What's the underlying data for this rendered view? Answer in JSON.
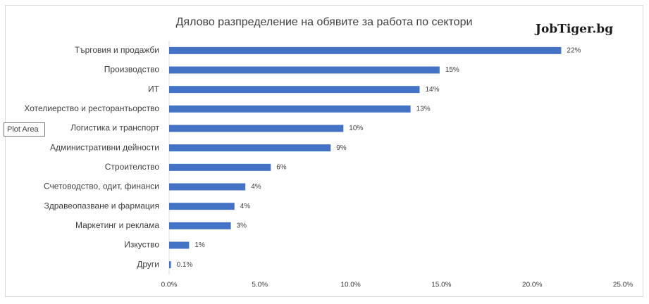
{
  "chart_data": {
    "type": "bar",
    "title": "Дялово разпределение на обявите за работа по сектори",
    "brand": "JobTiger.bg",
    "tooltip": "Plot Area",
    "categories": [
      "Търговия и продажби",
      "Производство",
      "ИТ",
      "Хотелиерство и ресторантьорство",
      "Логистика и транспорт",
      "Административни дейности",
      "Строителство",
      "Счетоводство, одит, финанси",
      "Здравеопазване и фармация",
      "Маркетинг и реклама",
      "Изкуство",
      "Други"
    ],
    "values": [
      21.6,
      14.9,
      13.8,
      13.3,
      9.6,
      8.9,
      5.6,
      4.2,
      3.6,
      3.4,
      1.1,
      0.1
    ],
    "value_labels": [
      "22%",
      "15%",
      "14%",
      "13%",
      "10%",
      "9%",
      "6%",
      "4%",
      "4%",
      "3%",
      "1%",
      "0.1%"
    ],
    "color": "#4472c4",
    "xlim": [
      0,
      25
    ],
    "xticks": [
      {
        "value": 0,
        "label": "0.0%"
      },
      {
        "value": 5,
        "label": "5.0%"
      },
      {
        "value": 10,
        "label": "10.0%"
      },
      {
        "value": 15,
        "label": "15.0%"
      },
      {
        "value": 20,
        "label": "20.0%"
      },
      {
        "value": 25,
        "label": "25.0%"
      }
    ],
    "grid": false
  }
}
